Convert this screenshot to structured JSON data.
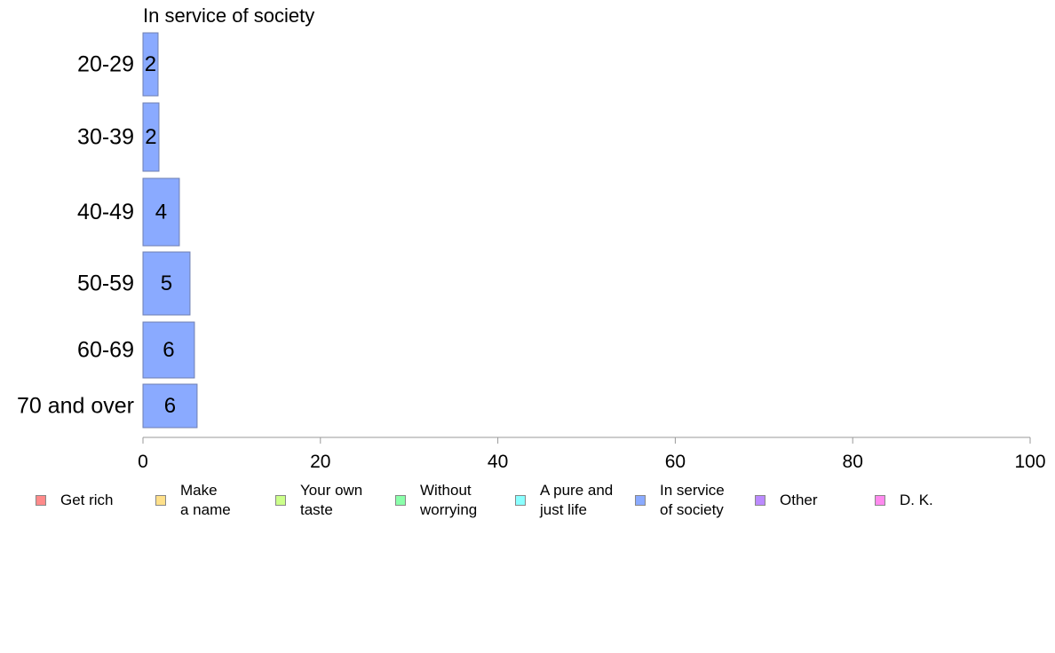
{
  "chart_data": {
    "type": "bar",
    "orientation": "horizontal",
    "title": "In service of society",
    "categories": [
      "20-29",
      "30-39",
      "40-49",
      "50-59",
      "60-69",
      "70 and over"
    ],
    "values": [
      1.7,
      1.8,
      4.1,
      5.3,
      5.8,
      6.1
    ],
    "data_labels": [
      "2",
      "2",
      "4",
      "5",
      "6",
      "6"
    ],
    "xlim": [
      0,
      100
    ],
    "xticks": [
      "0",
      "20",
      "40",
      "60",
      "80",
      "100"
    ],
    "xticks_values": [
      0,
      20,
      40,
      60,
      80,
      100
    ],
    "grid": false,
    "legend_position": "bottom",
    "bar_color": "#8aaaff",
    "legend": [
      {
        "label": "Get rich",
        "color": "#ff8a8a"
      },
      {
        "label": "Make\na name",
        "color": "#ffe08a"
      },
      {
        "label": "Your own\ntaste",
        "color": "#ccff8a"
      },
      {
        "label": "Without\nworrying",
        "color": "#8affaa"
      },
      {
        "label": "A pure and\njust life",
        "color": "#8affff"
      },
      {
        "label": "In service\nof society",
        "color": "#8aaaff"
      },
      {
        "label": "Other",
        "color": "#bb8aff"
      },
      {
        "label": "D. K.",
        "color": "#ff8aee"
      }
    ]
  }
}
